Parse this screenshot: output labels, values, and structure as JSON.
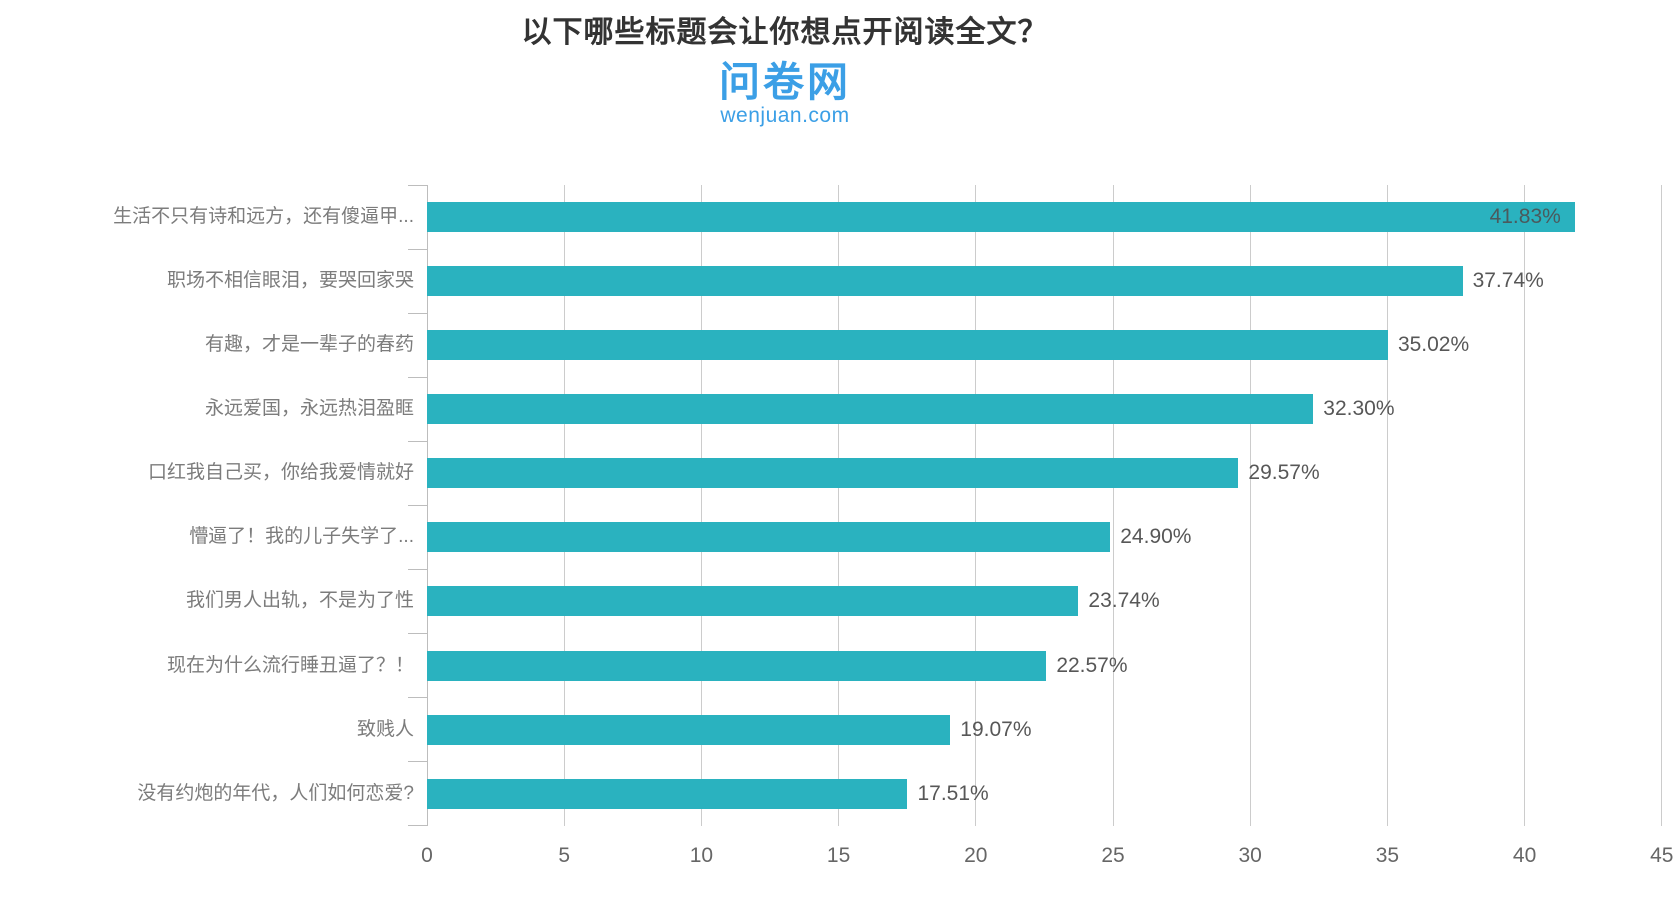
{
  "header": {
    "title": "以下哪些标题会让你想点开阅读全文？",
    "logo_cn": "问卷网",
    "logo_domain": "wenjuan.com"
  },
  "colors": {
    "bar": "#2ab2bf",
    "grid": "#cccccc",
    "axis": "#bdbdbd",
    "title": "#333333",
    "category_label": "#7c7c7c",
    "value_label": "#575757",
    "value_label_inside": "#4a5a5d",
    "tick_label": "#666666",
    "logo_blue": "#3b9fe6"
  },
  "chart_data": {
    "type": "bar",
    "orientation": "horizontal",
    "title": "以下哪些标题会让你想点开阅读全文？",
    "categories": [
      "生活不只有诗和远方，还有傻逼甲...",
      "职场不相信眼泪，要哭回家哭",
      "有趣，才是一辈子的春药",
      "永远爱国，永远热泪盈眶",
      "口红我自己买，你给我爱情就好",
      "懵逼了！我的儿子失学了...",
      "我们男人出轨，不是为了性",
      "现在为什么流行睡丑逼了？！",
      "致贱人",
      "没有约炮的年代，人们如何恋爱?"
    ],
    "values": [
      41.83,
      37.74,
      35.02,
      32.3,
      29.57,
      24.9,
      23.74,
      22.57,
      19.07,
      17.51
    ],
    "value_labels": [
      "41.83%",
      "37.74%",
      "35.02%",
      "32.30%",
      "29.57%",
      "24.90%",
      "23.74%",
      "22.57%",
      "19.07%",
      "17.51%"
    ],
    "xlabel": "",
    "ylabel": "",
    "xlim": [
      0,
      45
    ],
    "x_ticks": [
      0,
      5,
      10,
      15,
      20,
      25,
      30,
      35,
      40,
      45
    ],
    "grid": true,
    "legend": null,
    "value_label_position": "outside right of bar; first bar label rendered inside bar"
  }
}
